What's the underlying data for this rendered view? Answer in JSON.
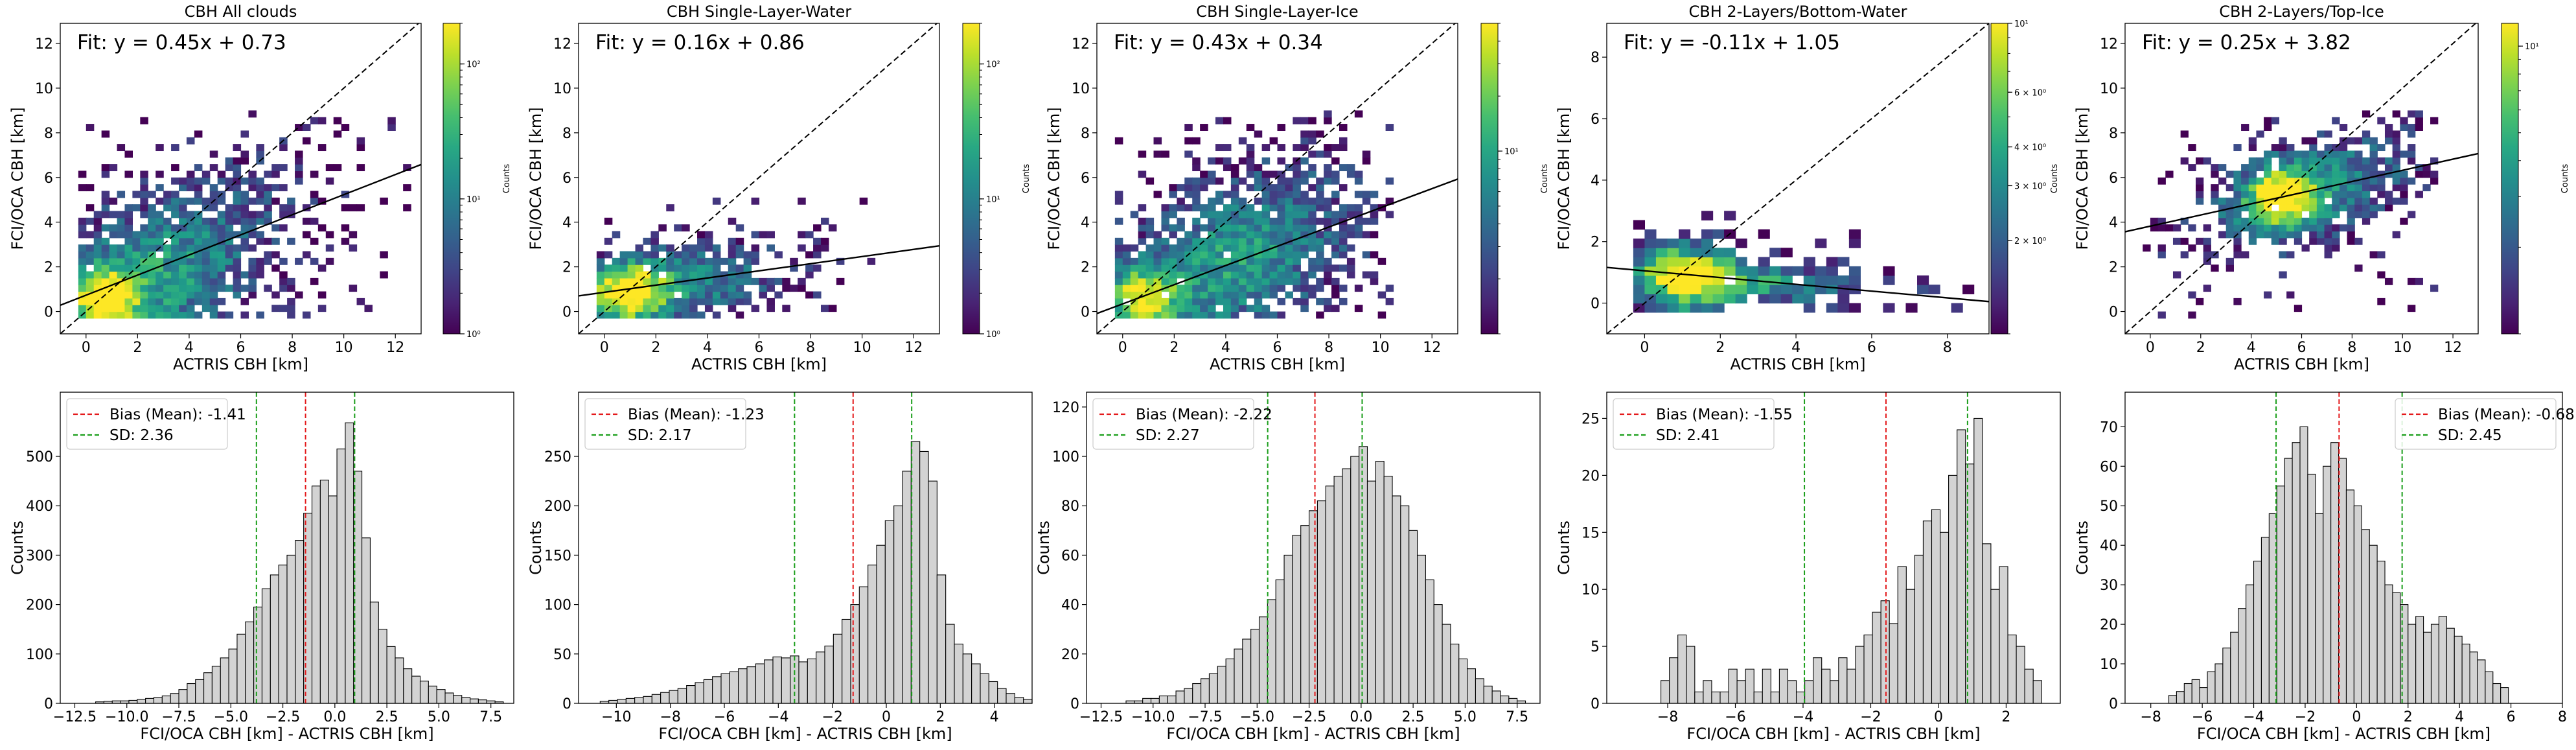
{
  "chart_data": [
    {
      "type": "heatmap",
      "title": "CBH All clouds",
      "xlabel": "ACTRIS CBH [km]",
      "ylabel": "FCI/OCA CBH [km]",
      "xlim": [
        -1,
        13
      ],
      "ylim": [
        -1,
        12.9
      ],
      "xticks": [
        0,
        2,
        4,
        6,
        8,
        10,
        12
      ],
      "yticks": [
        0,
        2,
        4,
        6,
        8,
        10,
        12
      ],
      "fit_text": "Fit: y = 0.45x + 0.73",
      "fit": {
        "slope": 0.45,
        "intercept": 0.73
      },
      "colorbar": {
        "label": "Counts",
        "scale": "log",
        "min": 1,
        "max": 200,
        "ticks": [
          1,
          10,
          100
        ],
        "tick_labels": [
          "10⁰",
          "10¹",
          "10²"
        ]
      },
      "density": {
        "seed": 11,
        "cx": 2.2,
        "cy": 1.2,
        "rx": 3.6,
        "ry": 2.6,
        "corr": 0.45,
        "peak": [
          0.6,
          0.5
        ],
        "xmax": 12.4,
        "ymax": 9
      }
    },
    {
      "type": "heatmap",
      "title": "CBH Single-Layer-Water",
      "xlabel": "ACTRIS CBH [km]",
      "ylabel": "FCI/OCA CBH [km]",
      "xlim": [
        -1,
        13
      ],
      "ylim": [
        -1,
        12.9
      ],
      "xticks": [
        0,
        2,
        4,
        6,
        8,
        10,
        12
      ],
      "yticks": [
        0,
        2,
        4,
        6,
        8,
        10,
        12
      ],
      "fit_text": "Fit: y = 0.16x + 0.86",
      "fit": {
        "slope": 0.16,
        "intercept": 0.86
      },
      "colorbar": {
        "label": "Counts",
        "scale": "log",
        "min": 1,
        "max": 200,
        "ticks": [
          1,
          10,
          100
        ],
        "tick_labels": [
          "10⁰",
          "10¹",
          "10²"
        ]
      },
      "density": {
        "seed": 23,
        "cx": 2.0,
        "cy": 1.0,
        "rx": 3.2,
        "ry": 1.2,
        "corr": 0.15,
        "peak": [
          0.8,
          0.7
        ],
        "xmax": 10.4,
        "ymax": 5
      }
    },
    {
      "type": "heatmap",
      "title": "CBH Single-Layer-Ice",
      "xlabel": "ACTRIS CBH [km]",
      "ylabel": "FCI/OCA CBH [km]",
      "xlim": [
        -1,
        13
      ],
      "ylim": [
        -1,
        12.9
      ],
      "xticks": [
        0,
        2,
        4,
        6,
        8,
        10,
        12
      ],
      "yticks": [
        0,
        2,
        4,
        6,
        8,
        10,
        12
      ],
      "fit_text": "Fit: y = 0.43x + 0.34",
      "fit": {
        "slope": 0.43,
        "intercept": 0.34
      },
      "colorbar": {
        "label": "Counts",
        "scale": "log",
        "min": 1,
        "max": 50,
        "ticks": [
          10
        ],
        "tick_labels": [
          "10¹"
        ]
      },
      "density": {
        "seed": 37,
        "cx": 4.0,
        "cy": 2.0,
        "rx": 3.4,
        "ry": 2.6,
        "corr": 0.4,
        "peak": [
          0.5,
          0.5
        ],
        "xmax": 10.4,
        "ymax": 9
      }
    },
    {
      "type": "heatmap",
      "title": "CBH 2-Layers/Bottom-Water",
      "xlabel": "ACTRIS CBH [km]",
      "ylabel": "FCI/OCA CBH [km]",
      "xlim": [
        -1,
        9.1
      ],
      "ylim": [
        -1,
        9.1
      ],
      "xticks": [
        0,
        2,
        4,
        6,
        8
      ],
      "yticks": [
        0,
        2,
        4,
        6,
        8
      ],
      "fit_text": "Fit: y = -0.11x + 1.05",
      "fit": {
        "slope": -0.11,
        "intercept": 1.05
      },
      "colorbar": {
        "label": "Counts",
        "scale": "log",
        "min": 1,
        "max": 10,
        "ticks": [
          2,
          3,
          4,
          6,
          10
        ],
        "tick_labels": [
          "2 × 10⁰",
          "3 × 10⁰",
          "4 × 10⁰",
          "6 × 10⁰",
          "10¹"
        ]
      },
      "density": {
        "seed": 53,
        "cx": 2.6,
        "cy": 0.6,
        "rx": 2.4,
        "ry": 0.5,
        "corr": -0.1,
        "peak": [
          0.9,
          0.6
        ],
        "xmax": 8.4,
        "ymax": 2.8
      }
    },
    {
      "type": "heatmap",
      "title": "CBH 2-Layers/Top-Ice",
      "xlabel": "ACTRIS CBH [km]",
      "ylabel": "FCI/OCA CBH [km]",
      "xlim": [
        -1,
        13
      ],
      "ylim": [
        -1,
        12.9
      ],
      "xticks": [
        0,
        2,
        4,
        6,
        8,
        10,
        12
      ],
      "yticks": [
        0,
        2,
        4,
        6,
        8,
        10,
        12
      ],
      "fit_text": "Fit: y = 0.25x + 3.82",
      "fit": {
        "slope": 0.25,
        "intercept": 3.82
      },
      "colorbar": {
        "label": "Counts",
        "scale": "log",
        "min": 1,
        "max": 12,
        "ticks": [
          10
        ],
        "tick_labels": [
          "10¹"
        ]
      },
      "density": {
        "seed": 71,
        "cx": 6.0,
        "cy": 5.2,
        "rx": 2.8,
        "ry": 1.5,
        "corr": 0.3,
        "peak": [
          5.0,
          5.0
        ],
        "xmax": 11.2,
        "ymax": 8.8
      }
    },
    {
      "type": "bar",
      "xlabel": "FCI/OCA CBH [km] - ACTRIS CBH [km]",
      "ylabel": "Counts",
      "xlim": [
        -13.2,
        8.6
      ],
      "ylim": [
        0,
        600
      ],
      "xticks": [
        -12.5,
        -10.0,
        -7.5,
        -5.0,
        -2.5,
        0.0,
        2.5,
        5.0,
        7.5
      ],
      "xtick_labels": [
        "−12.5",
        "−10.0",
        "−7.5",
        "−5.0",
        "−2.5",
        "0.0",
        "2.5",
        "5.0",
        "7.5"
      ],
      "yticks": [
        0,
        100,
        200,
        300,
        400,
        500
      ],
      "bias": -1.41,
      "sd": 2.36,
      "legend": [
        "Bias (Mean): -1.41",
        "SD: 2.36"
      ],
      "legend_loc": "upper left",
      "bins": {
        "start": -11.5,
        "width": 0.4
      },
      "values": [
        3,
        4,
        5,
        5,
        6,
        8,
        10,
        12,
        15,
        20,
        28,
        40,
        48,
        62,
        75,
        92,
        110,
        140,
        165,
        195,
        232,
        260,
        280,
        300,
        330,
        385,
        440,
        452,
        420,
        515,
        568,
        470,
        335,
        205,
        150,
        115,
        92,
        70,
        55,
        45,
        35,
        28,
        21,
        16,
        12,
        9,
        7,
        5,
        3
      ]
    },
    {
      "type": "bar",
      "xlabel": "FCI/OCA CBH [km] - ACTRIS CBH [km]",
      "ylabel": "Counts",
      "xlim": [
        -11.4,
        5.4
      ],
      "ylim": [
        0,
        300
      ],
      "xticks": [
        -10,
        -8,
        -6,
        -4,
        -2,
        0,
        2,
        4
      ],
      "xtick_labels": [
        "−10",
        "−8",
        "−6",
        "−4",
        "−2",
        "0",
        "2",
        "4"
      ],
      "yticks": [
        0,
        50,
        100,
        150,
        200,
        250
      ],
      "bias": -1.23,
      "sd": 2.17,
      "legend": [
        "Bias (Mean): -1.23",
        "SD: 2.17"
      ],
      "legend_loc": "upper left",
      "bins": {
        "start": -10.6,
        "width": 0.32
      },
      "values": [
        2,
        3,
        4,
        5,
        6,
        7,
        9,
        11,
        13,
        15,
        18,
        21,
        24,
        27,
        30,
        32,
        35,
        37,
        40,
        44,
        47,
        46,
        48,
        42,
        45,
        52,
        58,
        70,
        85,
        100,
        118,
        140,
        160,
        185,
        200,
        235,
        265,
        255,
        225,
        130,
        80,
        60,
        50,
        40,
        30,
        22,
        15,
        10,
        6,
        4
      ]
    },
    {
      "type": "bar",
      "xlabel": "FCI/OCA CBH [km] - ACTRIS CBH [km]",
      "ylabel": "Counts",
      "xlim": [
        -13.2,
        8.6
      ],
      "ylim": [
        0,
        120
      ],
      "xticks": [
        -12.5,
        -10.0,
        -7.5,
        -5.0,
        -2.5,
        0.0,
        2.5,
        5.0,
        7.5
      ],
      "xtick_labels": [
        "−12.5",
        "−10.0",
        "−7.5",
        "−5.0",
        "−2.5",
        "0.0",
        "2.5",
        "5.0",
        "7.5"
      ],
      "yticks": [
        0,
        20,
        40,
        60,
        80,
        100,
        120
      ],
      "bias": -2.22,
      "sd": 2.27,
      "legend": [
        "Bias (Mean): -2.22",
        "SD: 2.27"
      ],
      "legend_loc": "upper left",
      "bins": {
        "start": -11.3,
        "width": 0.4
      },
      "values": [
        1,
        1,
        2,
        2,
        3,
        3,
        5,
        6,
        8,
        10,
        12,
        15,
        18,
        22,
        26,
        30,
        35,
        42,
        50,
        60,
        68,
        72,
        78,
        82,
        88,
        92,
        95,
        100,
        104,
        90,
        98,
        92,
        84,
        80,
        70,
        60,
        50,
        40,
        32,
        24,
        18,
        14,
        10,
        7,
        5,
        3,
        2,
        1
      ]
    },
    {
      "type": "bar",
      "xlabel": "FCI/OCA CBH [km] - ACTRIS CBH [km]",
      "ylabel": "Counts",
      "xlim": [
        -9.8,
        3.6
      ],
      "ylim": [
        0,
        26
      ],
      "xticks": [
        -8,
        -6,
        -4,
        -2,
        0,
        2
      ],
      "xtick_labels": [
        "−8",
        "−6",
        "−4",
        "−2",
        "0",
        "2"
      ],
      "yticks": [
        0,
        5,
        10,
        15,
        20,
        25
      ],
      "bias": -1.55,
      "sd": 2.41,
      "legend": [
        "Bias (Mean): -1.55",
        "SD: 2.41"
      ],
      "legend_loc": "upper left",
      "bins": {
        "start": -8.2,
        "width": 0.25
      },
      "values": [
        2,
        4,
        6,
        5,
        1,
        2,
        1,
        1,
        3,
        2,
        3,
        1,
        3,
        1,
        3,
        2,
        1,
        2,
        4,
        3,
        2,
        4,
        3,
        5,
        6,
        8,
        9,
        7,
        12,
        10,
        13,
        16,
        17,
        15,
        20,
        24,
        21,
        25,
        14,
        10,
        12,
        6,
        5,
        3,
        2
      ]
    },
    {
      "type": "bar",
      "xlabel": "FCI/OCA CBH [km] - ACTRIS CBH [km]",
      "ylabel": "Counts",
      "xlim": [
        -9,
        8
      ],
      "ylim": [
        0,
        75
      ],
      "xticks": [
        -8,
        -6,
        -4,
        -2,
        0,
        2,
        4,
        6,
        8
      ],
      "xtick_labels": [
        "−8",
        "−6",
        "−4",
        "−2",
        "0",
        "2",
        "4",
        "6",
        "8"
      ],
      "yticks": [
        0,
        10,
        20,
        30,
        40,
        50,
        60,
        70
      ],
      "bias": -0.68,
      "sd": 2.45,
      "legend": [
        "Bias (Mean): -0.68",
        "SD: 2.45"
      ],
      "legend_loc": "upper right",
      "bins": {
        "start": -7.3,
        "width": 0.3
      },
      "values": [
        2,
        3,
        5,
        6,
        4,
        8,
        10,
        14,
        18,
        24,
        30,
        36,
        42,
        48,
        55,
        62,
        66,
        70,
        58,
        48,
        60,
        66,
        62,
        54,
        50,
        44,
        40,
        36,
        30,
        28,
        25,
        20,
        22,
        18,
        20,
        22,
        19,
        17,
        15,
        13,
        11,
        8,
        5,
        4
      ]
    }
  ]
}
